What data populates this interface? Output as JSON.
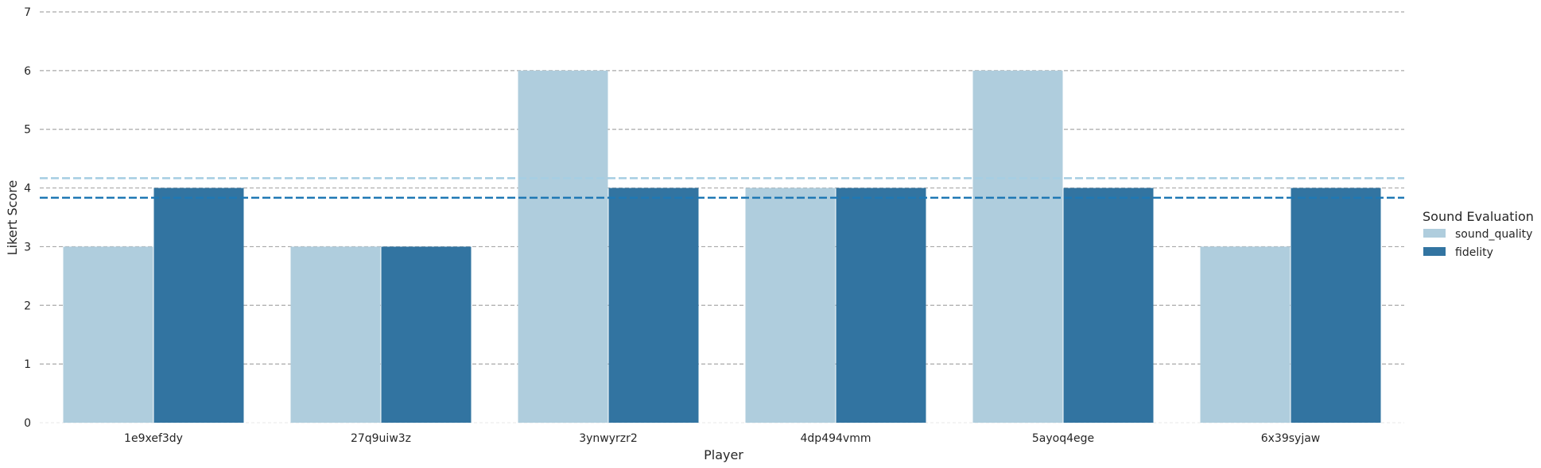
{
  "chart_data": {
    "type": "bar",
    "title": "",
    "xlabel": "Player",
    "ylabel": "Likert Score",
    "ylim": [
      0,
      7
    ],
    "yticks": [
      0,
      1,
      2,
      3,
      4,
      5,
      6,
      7
    ],
    "grid": true,
    "grid_style": "dashed-horizontal",
    "categories": [
      "1e9xef3dy",
      "27q9uiw3z",
      "3ynwyrzr2",
      "4dp494vmm",
      "5ayoq4ege",
      "6x39syjaw"
    ],
    "series": [
      {
        "name": "sound_quality",
        "values": [
          3,
          3,
          6,
          4,
          6,
          3
        ],
        "color": "#afcddd",
        "mean": 4.1667,
        "mean_line_color": "#a6cee3"
      },
      {
        "name": "fidelity",
        "values": [
          4,
          3,
          4,
          4,
          4,
          4
        ],
        "color": "#3274a1",
        "mean": 3.8333,
        "mean_line_color": "#1f78b4"
      }
    ],
    "legend": {
      "title": "Sound Evaluation",
      "placement": "right"
    }
  }
}
